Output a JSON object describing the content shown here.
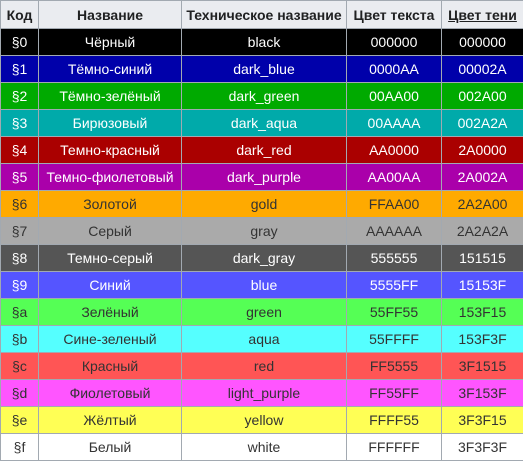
{
  "headers": [
    "Код",
    "Название",
    "Техническое название",
    "Цвет текста",
    "Цвет тени"
  ],
  "rows": [
    {
      "code": "§0",
      "name": "Чёрный",
      "tech": "black",
      "text_color": "000000",
      "shadow_color": "000000",
      "bg": "#000000",
      "fg": "#ffffff"
    },
    {
      "code": "§1",
      "name": "Тёмно-синий",
      "tech": "dark_blue",
      "text_color": "0000AA",
      "shadow_color": "00002A",
      "bg": "#0000aa",
      "fg": "#ffffff"
    },
    {
      "code": "§2",
      "name": "Тёмно-зелёный",
      "tech": "dark_green",
      "text_color": "00AA00",
      "shadow_color": "002A00",
      "bg": "#00aa00",
      "fg": "#ffffff"
    },
    {
      "code": "§3",
      "name": "Бирюзовый",
      "tech": "dark_aqua",
      "text_color": "00AAAA",
      "shadow_color": "002A2A",
      "bg": "#00aaaa",
      "fg": "#ffffff"
    },
    {
      "code": "§4",
      "name": "Темно-красный",
      "tech": "dark_red",
      "text_color": "AA0000",
      "shadow_color": "2A0000",
      "bg": "#aa0000",
      "fg": "#ffffff"
    },
    {
      "code": "§5",
      "name": "Темно-фиолетовый",
      "tech": "dark_purple",
      "text_color": "AA00AA",
      "shadow_color": "2A002A",
      "bg": "#aa00aa",
      "fg": "#ffffff"
    },
    {
      "code": "§6",
      "name": "Золотой",
      "tech": "gold",
      "text_color": "FFAA00",
      "shadow_color": "2A2A00",
      "bg": "#ffaa00",
      "fg": "#333333"
    },
    {
      "code": "§7",
      "name": "Серый",
      "tech": "gray",
      "text_color": "AAAAAA",
      "shadow_color": "2A2A2A",
      "bg": "#aaaaaa",
      "fg": "#333333"
    },
    {
      "code": "§8",
      "name": "Темно-серый",
      "tech": "dark_gray",
      "text_color": "555555",
      "shadow_color": "151515",
      "bg": "#555555",
      "fg": "#ffffff"
    },
    {
      "code": "§9",
      "name": "Синий",
      "tech": "blue",
      "text_color": "5555FF",
      "shadow_color": "15153F",
      "bg": "#5555ff",
      "fg": "#ffffff"
    },
    {
      "code": "§a",
      "name": "Зелёный",
      "tech": "green",
      "text_color": "55FF55",
      "shadow_color": "153F15",
      "bg": "#55ff55",
      "fg": "#333333"
    },
    {
      "code": "§b",
      "name": "Сине-зеленый",
      "tech": "aqua",
      "text_color": "55FFFF",
      "shadow_color": "153F3F",
      "bg": "#55ffff",
      "fg": "#333333"
    },
    {
      "code": "§c",
      "name": "Красный",
      "tech": "red",
      "text_color": "FF5555",
      "shadow_color": "3F1515",
      "bg": "#ff5555",
      "fg": "#333333"
    },
    {
      "code": "§d",
      "name": "Фиолетовый",
      "tech": "light_purple",
      "text_color": "FF55FF",
      "shadow_color": "3F153F",
      "bg": "#ff55ff",
      "fg": "#333333"
    },
    {
      "code": "§e",
      "name": "Жёлтый",
      "tech": "yellow",
      "text_color": "FFFF55",
      "shadow_color": "3F3F15",
      "bg": "#ffff55",
      "fg": "#333333"
    },
    {
      "code": "§f",
      "name": "Белый",
      "tech": "white",
      "text_color": "FFFFFF",
      "shadow_color": "3F3F3F",
      "bg": "#ffffff",
      "fg": "#333333"
    }
  ]
}
